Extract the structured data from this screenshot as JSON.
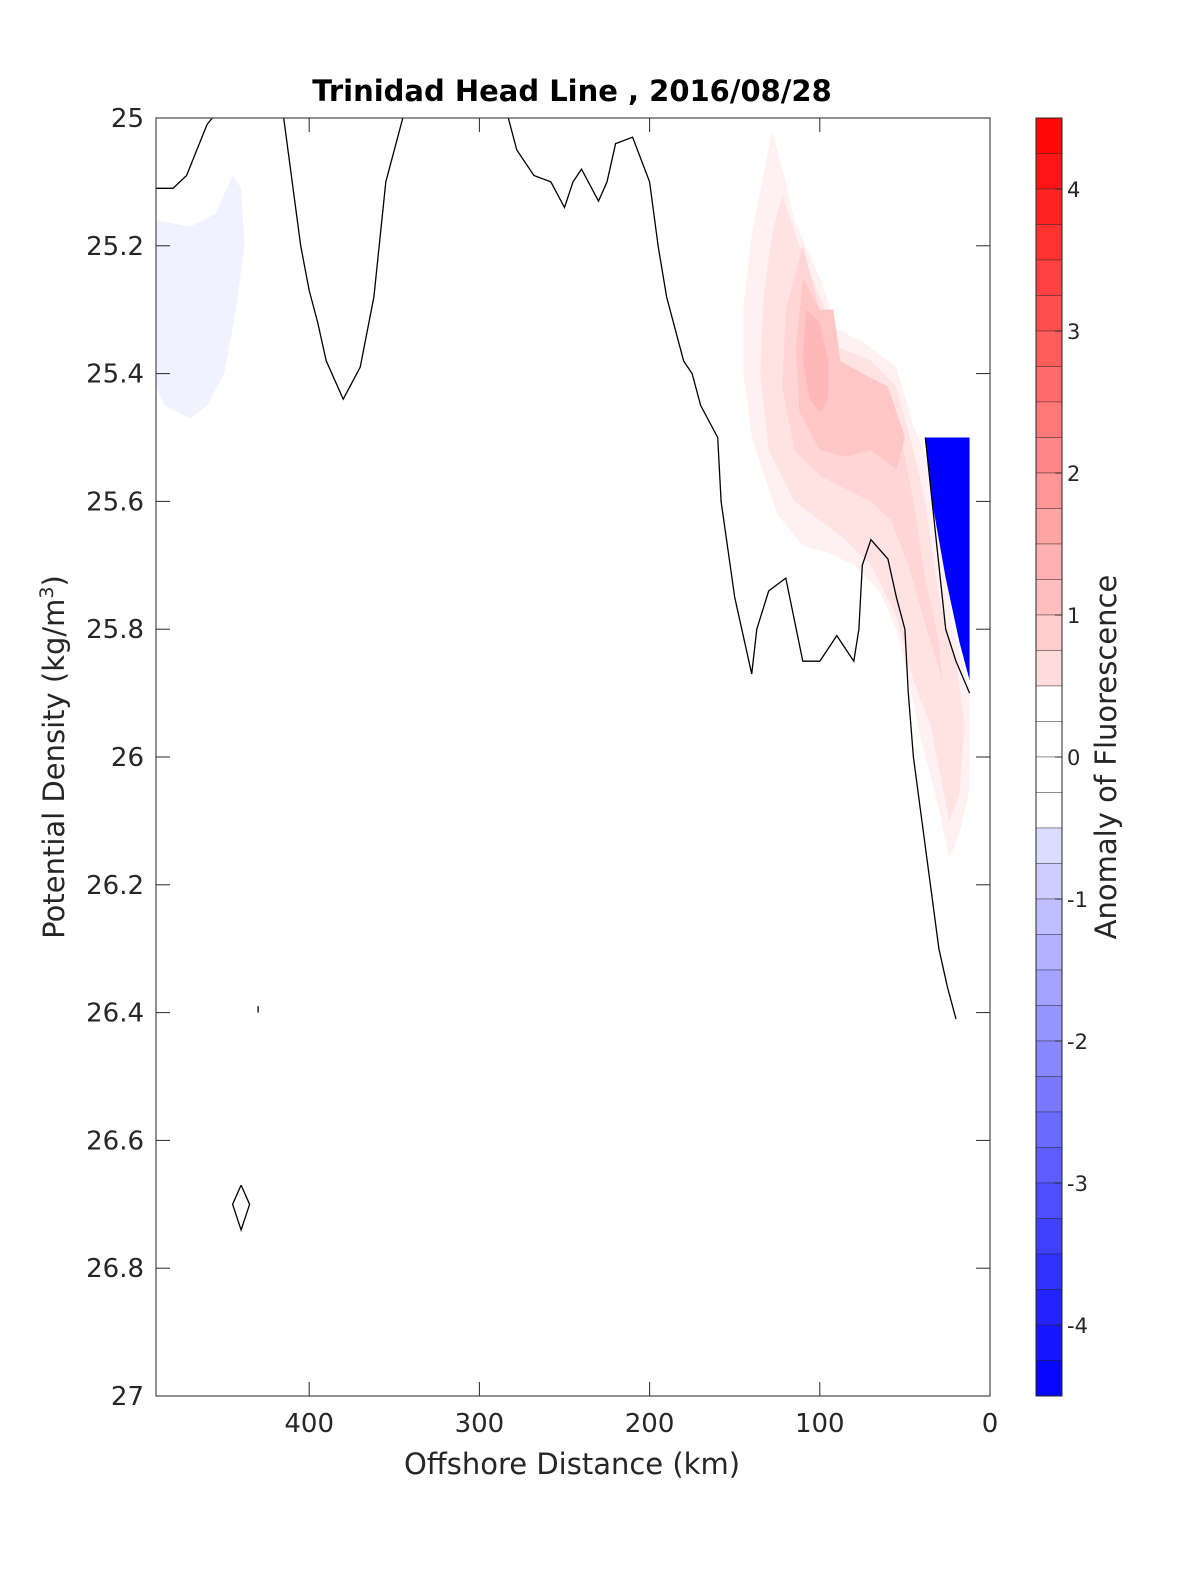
{
  "chart_data": {
    "type": "contour",
    "title": "Trinidad Head Line , 2016/08/28",
    "xlabel": "Offshore Distance (km)",
    "ylabel_main": "Potential Density (kg/m",
    "ylabel_sup": "3",
    "ylabel_tail": ")",
    "xlim": [
      490,
      0
    ],
    "ylim": [
      25,
      27
    ],
    "x_reversed": true,
    "y_reversed": true,
    "x_ticks": [
      400,
      300,
      200,
      100,
      0
    ],
    "x_tick_labels": [
      "400",
      "300",
      "200",
      "100",
      "0"
    ],
    "y_ticks": [
      25,
      25.2,
      25.4,
      25.6,
      25.8,
      26,
      26.2,
      26.4,
      26.6,
      26.8,
      27
    ],
    "y_tick_labels": [
      "25",
      "25.2",
      "25.4",
      "25.6",
      "25.8",
      "26",
      "26.2",
      "26.4",
      "26.6",
      "26.8",
      "27"
    ],
    "grid": false,
    "colorbar": {
      "label": "Anomaly of Fluorescence",
      "range": [
        -4.5,
        4.5
      ],
      "step": 0.25,
      "ticks": [
        4,
        3,
        2,
        1,
        0,
        -1,
        -2,
        -3,
        -4
      ],
      "tick_labels": [
        "4",
        "3",
        "2",
        "1",
        "0",
        "-1",
        "-2",
        "-3",
        "-4"
      ],
      "colormap": "blue-white-red",
      "low_color": "#0000ff",
      "zero_color": "#ffffff",
      "high_color": "#ff0000"
    },
    "filled_regions": [
      {
        "name": "offshore-negative-patch",
        "level": -0.25,
        "points": [
          [
            490,
            25.16
          ],
          [
            470,
            25.17
          ],
          [
            455,
            25.15
          ],
          [
            445,
            25.09
          ],
          [
            440,
            25.11
          ],
          [
            438,
            25.2
          ],
          [
            443,
            25.3
          ],
          [
            450,
            25.4
          ],
          [
            460,
            25.45
          ],
          [
            470,
            25.47
          ],
          [
            485,
            25.45
          ],
          [
            490,
            25.42
          ]
        ]
      },
      {
        "name": "nearshore-positive-0.25",
        "level": 0.25,
        "points": [
          [
            128,
            25.02
          ],
          [
            120,
            25.1
          ],
          [
            115,
            25.16
          ],
          [
            100,
            25.25
          ],
          [
            90,
            25.33
          ],
          [
            75,
            25.35
          ],
          [
            55,
            25.39
          ],
          [
            45,
            25.48
          ],
          [
            35,
            25.55
          ],
          [
            30,
            25.6
          ],
          [
            22,
            25.8
          ],
          [
            12,
            25.89
          ],
          [
            12,
            26.05
          ],
          [
            18,
            26.12
          ],
          [
            24,
            26.16
          ],
          [
            30,
            26.08
          ],
          [
            40,
            25.98
          ],
          [
            48,
            25.88
          ],
          [
            55,
            25.8
          ],
          [
            65,
            25.74
          ],
          [
            80,
            25.7
          ],
          [
            95,
            25.68
          ],
          [
            110,
            25.67
          ],
          [
            125,
            25.62
          ],
          [
            140,
            25.5
          ],
          [
            145,
            25.4
          ],
          [
            145,
            25.3
          ],
          [
            140,
            25.18
          ]
        ]
      },
      {
        "name": "nearshore-positive-0.5",
        "level": 0.5,
        "points": [
          [
            122,
            25.12
          ],
          [
            112,
            25.2
          ],
          [
            100,
            25.28
          ],
          [
            88,
            25.36
          ],
          [
            70,
            25.38
          ],
          [
            55,
            25.42
          ],
          [
            45,
            25.52
          ],
          [
            38,
            25.6
          ],
          [
            30,
            25.75
          ],
          [
            20,
            25.85
          ],
          [
            15,
            25.95
          ],
          [
            18,
            26.06
          ],
          [
            24,
            26.1
          ],
          [
            35,
            25.95
          ],
          [
            45,
            25.88
          ],
          [
            55,
            25.78
          ],
          [
            70,
            25.7
          ],
          [
            85,
            25.66
          ],
          [
            100,
            25.63
          ],
          [
            115,
            25.6
          ],
          [
            130,
            25.52
          ],
          [
            135,
            25.4
          ],
          [
            133,
            25.28
          ],
          [
            128,
            25.18
          ]
        ]
      },
      {
        "name": "nearshore-positive-0.75",
        "level": 0.75,
        "points": [
          [
            110,
            25.2
          ],
          [
            100,
            25.3
          ],
          [
            90,
            25.38
          ],
          [
            75,
            25.4
          ],
          [
            62,
            25.43
          ],
          [
            52,
            25.5
          ],
          [
            45,
            25.6
          ],
          [
            38,
            25.72
          ],
          [
            30,
            25.82
          ],
          [
            28,
            25.88
          ],
          [
            35,
            25.82
          ],
          [
            48,
            25.7
          ],
          [
            58,
            25.63
          ],
          [
            70,
            25.6
          ],
          [
            85,
            25.58
          ],
          [
            100,
            25.56
          ],
          [
            115,
            25.52
          ],
          [
            122,
            25.42
          ],
          [
            120,
            25.3
          ]
        ]
      },
      {
        "name": "nearshore-positive-1.0",
        "level": 1.0,
        "points": [
          [
            110,
            25.25
          ],
          [
            100,
            25.3
          ],
          [
            92,
            25.3
          ],
          [
            88,
            25.38
          ],
          [
            75,
            25.4
          ],
          [
            60,
            25.42
          ],
          [
            50,
            25.5
          ],
          [
            55,
            25.55
          ],
          [
            70,
            25.52
          ],
          [
            85,
            25.53
          ],
          [
            100,
            25.52
          ],
          [
            112,
            25.46
          ],
          [
            114,
            25.36
          ]
        ]
      },
      {
        "name": "nearshore-positive-1.25",
        "level": 1.25,
        "points": [
          [
            108,
            25.3
          ],
          [
            100,
            25.32
          ],
          [
            95,
            25.38
          ],
          [
            95,
            25.44
          ],
          [
            100,
            25.46
          ],
          [
            106,
            25.44
          ],
          [
            110,
            25.38
          ]
        ]
      },
      {
        "name": "nearshore-negative-patch",
        "level": -4.5,
        "points": [
          [
            38,
            25.5
          ],
          [
            12,
            25.5
          ],
          [
            12,
            25.88
          ],
          [
            18,
            25.82
          ],
          [
            26,
            25.72
          ],
          [
            34,
            25.6
          ]
        ]
      }
    ],
    "contour_lines": [
      {
        "name": "contour-offshore-arc",
        "points": [
          [
            490,
            25.11
          ],
          [
            480,
            25.11
          ],
          [
            472,
            25.09
          ],
          [
            466,
            25.05
          ],
          [
            460,
            25.01
          ],
          [
            457,
            25.0
          ]
        ]
      },
      {
        "name": "contour-dip",
        "points": [
          [
            415,
            25.0
          ],
          [
            410,
            25.1
          ],
          [
            405,
            25.2
          ],
          [
            400,
            25.27
          ],
          [
            395,
            25.32
          ],
          [
            390,
            25.38
          ],
          [
            380,
            25.44
          ],
          [
            370,
            25.39
          ],
          [
            362,
            25.28
          ],
          [
            355,
            25.1
          ],
          [
            345,
            25.0
          ]
        ]
      },
      {
        "name": "contour-main",
        "points": [
          [
            283,
            25.0
          ],
          [
            278,
            25.05
          ],
          [
            268,
            25.09
          ],
          [
            258,
            25.1
          ],
          [
            250,
            25.14
          ],
          [
            245,
            25.1
          ],
          [
            240,
            25.08
          ],
          [
            230,
            25.13
          ],
          [
            225,
            25.1
          ],
          [
            220,
            25.04
          ],
          [
            210,
            25.03
          ],
          [
            200,
            25.1
          ],
          [
            195,
            25.2
          ],
          [
            190,
            25.28
          ],
          [
            180,
            25.38
          ],
          [
            175,
            25.4
          ],
          [
            170,
            25.45
          ],
          [
            160,
            25.5
          ],
          [
            158,
            25.6
          ],
          [
            150,
            25.75
          ],
          [
            140,
            25.87
          ],
          [
            137,
            25.8
          ],
          [
            130,
            25.74
          ],
          [
            120,
            25.72
          ],
          [
            110,
            25.85
          ],
          [
            100,
            25.85
          ],
          [
            90,
            25.81
          ],
          [
            80,
            25.85
          ],
          [
            77,
            25.8
          ],
          [
            75,
            25.7
          ],
          [
            70,
            25.66
          ],
          [
            60,
            25.69
          ],
          [
            55,
            25.75
          ],
          [
            50,
            25.8
          ],
          [
            48,
            25.9
          ],
          [
            45,
            26.0
          ],
          [
            40,
            26.1
          ],
          [
            35,
            26.2
          ],
          [
            30,
            26.3
          ],
          [
            25,
            26.36
          ],
          [
            20,
            26.41
          ]
        ]
      },
      {
        "name": "contour-nearshore",
        "points": [
          [
            38,
            25.5
          ],
          [
            34,
            25.6
          ],
          [
            30,
            25.7
          ],
          [
            26,
            25.8
          ],
          [
            20,
            25.85
          ],
          [
            12,
            25.9
          ]
        ]
      },
      {
        "name": "contour-diamond",
        "points": [
          [
            440,
            26.67
          ],
          [
            435,
            26.7
          ],
          [
            440,
            26.74
          ],
          [
            445,
            26.7
          ],
          [
            440,
            26.67
          ]
        ]
      },
      {
        "name": "contour-tiny-mark",
        "points": [
          [
            430,
            26.39
          ],
          [
            430,
            26.4
          ]
        ]
      }
    ]
  }
}
